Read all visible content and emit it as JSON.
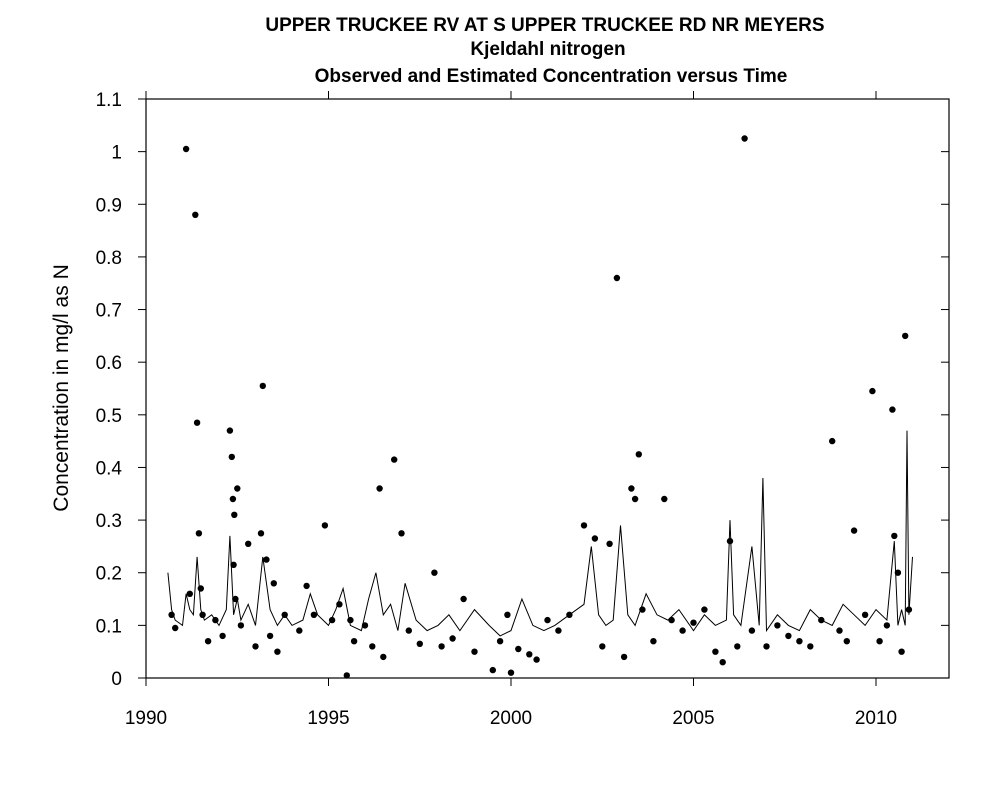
{
  "chart_data": {
    "type": "scatter",
    "title_lines": [
      "UPPER TRUCKEE RV AT S UPPER TRUCKEE RD NR MEYERS",
      "Kjeldahl nitrogen",
      "Observed and Estimated Concentration versus Time"
    ],
    "xlabel": "",
    "ylabel": "Concentration in mg/l as N",
    "xlim": [
      1990,
      2012
    ],
    "ylim": [
      0,
      1.1
    ],
    "x_ticks": [
      1990,
      1995,
      2000,
      2005,
      2010
    ],
    "y_ticks": [
      "0",
      "0.1",
      "0.2",
      "0.3",
      "0.4",
      "0.5",
      "0.6",
      "0.7",
      "0.8",
      "0.9",
      "1",
      "1.1"
    ],
    "grid": false,
    "series": [
      {
        "kind": "points",
        "x": [
          1990.7,
          1990.8,
          1991.1,
          1991.2,
          1991.35,
          1991.4,
          1991.45,
          1991.5,
          1991.55,
          1991.7,
          1991.9,
          1992.1,
          1992.3,
          1992.35,
          1992.38,
          1992.4,
          1992.42,
          1992.45,
          1992.5,
          1992.6,
          1992.8,
          1993.0,
          1993.15,
          1993.2,
          1993.3,
          1993.4,
          1993.5,
          1993.6,
          1993.8,
          1994.2,
          1994.4,
          1994.6,
          1994.9,
          1995.1,
          1995.3,
          1995.5,
          1995.6,
          1995.7,
          1996.0,
          1996.2,
          1996.4,
          1996.5,
          1996.8,
          1997.0,
          1997.2,
          1997.5,
          1997.9,
          1998.1,
          1998.4,
          1998.7,
          1999.0,
          1999.5,
          1999.7,
          1999.9,
          2000.0,
          2000.2,
          2000.5,
          2000.7,
          2001.0,
          2001.3,
          2001.6,
          2002.0,
          2002.3,
          2002.5,
          2002.7,
          2002.9,
          2003.1,
          2003.3,
          2003.4,
          2003.5,
          2003.6,
          2003.9,
          2004.2,
          2004.4,
          2004.7,
          2005.0,
          2005.3,
          2005.6,
          2005.8,
          2006.0,
          2006.2,
          2006.4,
          2006.6,
          2007.0,
          2007.3,
          2007.6,
          2007.9,
          2008.2,
          2008.5,
          2008.8,
          2009.0,
          2009.2,
          2009.4,
          2009.7,
          2009.9,
          2010.1,
          2010.3,
          2010.45,
          2010.5,
          2010.6,
          2010.7,
          2010.8,
          2010.9
        ],
        "y": [
          0.12,
          0.095,
          1.005,
          0.16,
          0.88,
          0.485,
          0.275,
          0.17,
          0.12,
          0.07,
          0.11,
          0.08,
          0.47,
          0.42,
          0.34,
          0.215,
          0.31,
          0.15,
          0.36,
          0.1,
          0.255,
          0.06,
          0.275,
          0.555,
          0.225,
          0.08,
          0.18,
          0.05,
          0.12,
          0.09,
          0.175,
          0.12,
          0.29,
          0.11,
          0.14,
          0.005,
          0.11,
          0.07,
          0.1,
          0.06,
          0.36,
          0.04,
          0.415,
          0.275,
          0.09,
          0.065,
          0.2,
          0.06,
          0.075,
          0.15,
          0.05,
          0.015,
          0.07,
          0.12,
          0.01,
          0.055,
          0.045,
          0.035,
          0.11,
          0.09,
          0.12,
          0.29,
          0.265,
          0.06,
          0.255,
          0.76,
          0.04,
          0.36,
          0.34,
          0.425,
          0.13,
          0.07,
          0.34,
          0.11,
          0.09,
          0.105,
          0.13,
          0.05,
          0.03,
          0.26,
          0.06,
          1.025,
          0.09,
          0.06,
          0.1,
          0.08,
          0.07,
          0.06,
          0.11,
          0.45,
          0.09,
          0.07,
          0.28,
          0.12,
          0.545,
          0.07,
          0.1,
          0.51,
          0.27,
          0.2,
          0.05,
          0.65,
          0.13
        ]
      },
      {
        "kind": "line",
        "x": [
          1990.6,
          1990.7,
          1990.8,
          1991.0,
          1991.1,
          1991.2,
          1991.3,
          1991.4,
          1991.5,
          1991.6,
          1991.8,
          1992.0,
          1992.2,
          1992.3,
          1992.4,
          1992.5,
          1992.6,
          1992.8,
          1993.0,
          1993.2,
          1993.4,
          1993.6,
          1993.8,
          1994.0,
          1994.3,
          1994.5,
          1994.7,
          1995.0,
          1995.2,
          1995.4,
          1995.6,
          1995.9,
          1996.1,
          1996.3,
          1996.5,
          1996.7,
          1996.9,
          1997.1,
          1997.4,
          1997.7,
          1998.0,
          1998.3,
          1998.6,
          1999.0,
          1999.4,
          1999.7,
          2000.0,
          2000.3,
          2000.6,
          2000.9,
          2001.2,
          2001.6,
          2002.0,
          2002.2,
          2002.4,
          2002.6,
          2002.8,
          2003.0,
          2003.2,
          2003.4,
          2003.7,
          2004.0,
          2004.3,
          2004.6,
          2005.0,
          2005.3,
          2005.6,
          2005.9,
          2006.0,
          2006.1,
          2006.3,
          2006.6,
          2006.8,
          2006.9,
          2007.0,
          2007.3,
          2007.6,
          2007.9,
          2008.2,
          2008.5,
          2008.8,
          2009.1,
          2009.4,
          2009.7,
          2010.0,
          2010.3,
          2010.5,
          2010.6,
          2010.7,
          2010.8,
          2010.85,
          2010.9,
          2011.0
        ],
        "y": [
          0.2,
          0.13,
          0.11,
          0.1,
          0.16,
          0.13,
          0.12,
          0.23,
          0.13,
          0.11,
          0.12,
          0.1,
          0.13,
          0.27,
          0.12,
          0.15,
          0.11,
          0.14,
          0.1,
          0.23,
          0.13,
          0.1,
          0.12,
          0.1,
          0.11,
          0.16,
          0.12,
          0.1,
          0.13,
          0.17,
          0.1,
          0.09,
          0.15,
          0.2,
          0.12,
          0.14,
          0.09,
          0.18,
          0.11,
          0.09,
          0.1,
          0.12,
          0.09,
          0.13,
          0.1,
          0.08,
          0.09,
          0.15,
          0.1,
          0.09,
          0.1,
          0.12,
          0.14,
          0.25,
          0.12,
          0.1,
          0.11,
          0.29,
          0.12,
          0.1,
          0.16,
          0.12,
          0.11,
          0.13,
          0.09,
          0.12,
          0.1,
          0.11,
          0.3,
          0.12,
          0.1,
          0.25,
          0.1,
          0.38,
          0.09,
          0.12,
          0.1,
          0.09,
          0.13,
          0.11,
          0.1,
          0.14,
          0.12,
          0.1,
          0.13,
          0.11,
          0.26,
          0.1,
          0.13,
          0.1,
          0.47,
          0.12,
          0.23
        ]
      }
    ]
  }
}
